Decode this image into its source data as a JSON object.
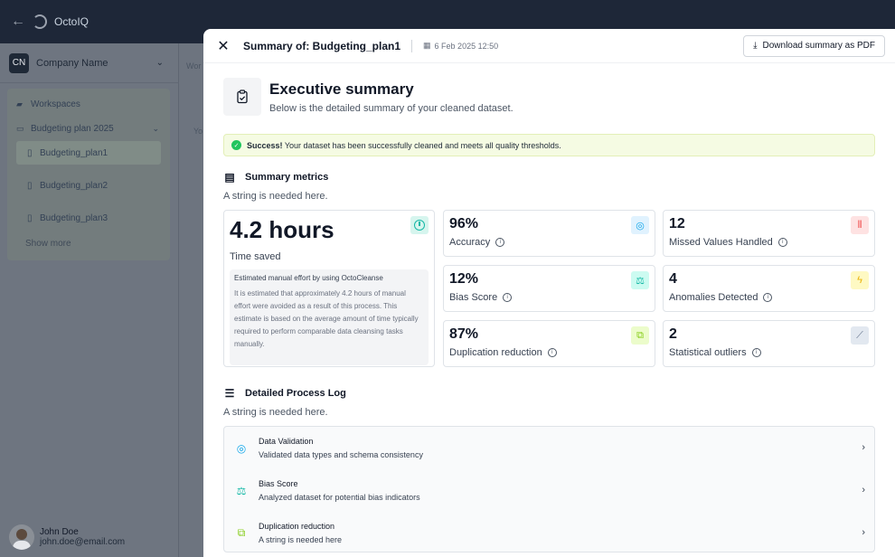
{
  "app": {
    "name": "OctoIQ"
  },
  "sidebar": {
    "company_initials": "CN",
    "company_name": "Company Name",
    "items": [
      {
        "label": "Workspaces"
      },
      {
        "label": "Budgeting plan 2025"
      }
    ],
    "files": [
      {
        "label": "Budgeting_plan1"
      },
      {
        "label": "Budgeting_plan2"
      },
      {
        "label": "Budgeting_plan3"
      }
    ],
    "show_more": "Show more",
    "user": {
      "name": "John Doe",
      "email": "john.doe@email.com"
    }
  },
  "background": {
    "frag1": "Wor",
    "frag2": "Yo"
  },
  "panel": {
    "title": "Summary of: Budgeting_plan1",
    "date": "6 Feb 2025 12:50",
    "download_label": "Download summary as PDF",
    "exec_title": "Executive summary",
    "exec_subtitle": "Below is the detailed summary of your cleaned dataset.",
    "success_bold": "Success!",
    "success_text": " Your dataset has been successfully cleaned and meets all quality thresholds."
  },
  "metrics": {
    "title": "Summary metrics",
    "subtitle": "A string is needed here.",
    "time_saved": {
      "value": "4.2 hours",
      "label": "Time saved",
      "est_title": "Estimated manual effort by using OctoCleanse",
      "est_text": "It is estimated that approximately 4.2 hours of manual effort were avoided as a result of this process. This estimate is based on the average amount of time typically required to perform comparable data cleansing tasks manually."
    },
    "cards": [
      {
        "value": "96%",
        "label": "Accuracy",
        "icon": "target-icon",
        "color": "#0ea5e9"
      },
      {
        "value": "12",
        "label": "Missed Values Handled",
        "icon": "bar-chart-icon",
        "color": "#ef4444"
      },
      {
        "value": "12%",
        "label": "Bias Score",
        "icon": "scale-icon",
        "color": "#14b8a6"
      },
      {
        "value": "4",
        "label": "Anomalies Detected",
        "icon": "route-icon",
        "color": "#eab308"
      },
      {
        "value": "87%",
        "label": "Duplication reduction",
        "icon": "copy-icon",
        "color": "#84cc16"
      },
      {
        "value": "2",
        "label": "Statistical outliers",
        "icon": "line-chart-icon",
        "color": "#64748b"
      }
    ]
  },
  "log": {
    "title": "Detailed Process Log",
    "subtitle": "A string is needed here.",
    "rows": [
      {
        "title": "Data Validation",
        "subtitle": "Validated data types and schema consistency",
        "icon": "target-icon"
      },
      {
        "title": "Bias Score",
        "subtitle": "Analyzed dataset for potential bias indicators",
        "icon": "scale-icon"
      },
      {
        "title": "Duplication reduction",
        "subtitle": "A string is needed here",
        "icon": "copy-icon"
      }
    ]
  }
}
